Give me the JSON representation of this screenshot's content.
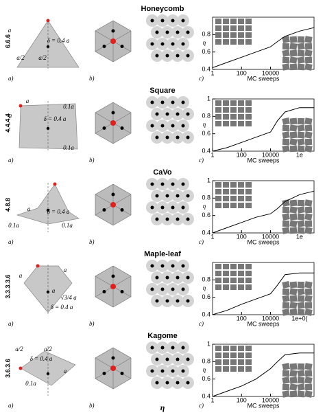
{
  "rows": [
    {
      "title": "Honeycomb",
      "tiling": "6.6.6",
      "annotations": [
        "a",
        "a/2",
        "a/2",
        "δ = 0.4 a"
      ],
      "panels": [
        "a)",
        "b)",
        "c)"
      ]
    },
    {
      "title": "Square",
      "tiling": "4.4.4.4",
      "annotations": [
        "a",
        "a",
        "δ = 0.4 a",
        "0.1a",
        "0.1a"
      ],
      "panels": [
        "a)",
        "b)",
        "c)"
      ]
    },
    {
      "title": "CaVo",
      "tiling": "4.8.8",
      "annotations": [
        "a",
        "δ = 0.4 a",
        "0.1a",
        "0.1a"
      ],
      "panels": [
        "a)",
        "b)",
        "c)"
      ]
    },
    {
      "title": "Maple-leaf",
      "tiling": "3.3.3.3.6",
      "annotations": [
        "a",
        "a",
        "a",
        "√3/4 a",
        "δ = 0.4 a"
      ],
      "panels": [
        "a)",
        "b)",
        "c)"
      ]
    },
    {
      "title": "Kagome",
      "tiling": "3.6.3.6",
      "annotations": [
        "a/2",
        "a/2",
        "δ = 0.4 a",
        "0.1a",
        "a"
      ],
      "panels": [
        "a)",
        "b)",
        "c)"
      ]
    }
  ],
  "chart_data": [
    {
      "type": "line",
      "xlabel": "MC sweeps",
      "ylabel": "η",
      "log_x": true,
      "color": "#000000",
      "xlim": [
        1,
        10000000
      ],
      "ylim": [
        0.4,
        1.0
      ],
      "xticks": [
        1,
        100,
        10000
      ],
      "yticks": [
        0.4,
        0.6,
        0.8
      ],
      "x": [
        1,
        10,
        100,
        1000,
        10000,
        30000,
        100000,
        1000000,
        10000000
      ],
      "values": [
        0.42,
        0.48,
        0.54,
        0.6,
        0.66,
        0.72,
        0.78,
        0.84,
        0.88
      ]
    },
    {
      "type": "line",
      "xlabel": "MC sweeps",
      "ylabel": "η",
      "log_x": true,
      "color": "#000000",
      "xlim": [
        1,
        10000000
      ],
      "ylim": [
        0.4,
        1.0
      ],
      "xticks": [
        1,
        100,
        10000,
        {
          "value": 1000000,
          "label": "1e"
        }
      ],
      "yticks": [
        0.4,
        0.6,
        0.8,
        1
      ],
      "x": [
        1,
        10,
        100,
        1000,
        10000,
        30000,
        100000,
        1000000,
        10000000
      ],
      "values": [
        0.4,
        0.44,
        0.5,
        0.56,
        0.62,
        0.75,
        0.85,
        0.9,
        0.9
      ]
    },
    {
      "type": "line",
      "xlabel": "MC sweeps",
      "ylabel": "η",
      "log_x": true,
      "color": "#000000",
      "xlim": [
        1,
        10000000
      ],
      "ylim": [
        0.4,
        1.0
      ],
      "xticks": [
        1,
        100,
        10000,
        {
          "value": 1000000,
          "label": "1e"
        }
      ],
      "yticks": [
        0.4,
        0.6,
        0.8,
        1
      ],
      "x": [
        1,
        10,
        100,
        1000,
        10000,
        30000,
        100000,
        1000000,
        10000000
      ],
      "values": [
        0.4,
        0.46,
        0.52,
        0.58,
        0.62,
        0.68,
        0.76,
        0.84,
        0.88
      ]
    },
    {
      "type": "line",
      "xlabel": "MC sweeps",
      "ylabel": "η",
      "log_x": true,
      "color": "#000000",
      "xlim": [
        1,
        10000000
      ],
      "ylim": [
        0.4,
        1.0
      ],
      "xticks": [
        100,
        10000,
        {
          "value": 1000000,
          "label": "1e+0("
        }
      ],
      "yticks": [
        0.4,
        0.6,
        0.8
      ],
      "x": [
        1,
        10,
        100,
        1000,
        10000,
        30000,
        100000,
        1000000,
        10000000
      ],
      "values": [
        0.4,
        0.45,
        0.52,
        0.58,
        0.64,
        0.74,
        0.86,
        0.88,
        0.88
      ]
    },
    {
      "type": "line",
      "xlabel": "MC sweeps",
      "ylabel": "η",
      "log_x": true,
      "color": "#000000",
      "xlim": [
        1,
        10000000
      ],
      "ylim": [
        0.4,
        1.0
      ],
      "xticks": [
        1,
        100,
        10000
      ],
      "yticks": [
        0.4,
        0.6,
        0.8,
        1
      ],
      "x": [
        1,
        10,
        100,
        1000,
        10000,
        30000,
        100000,
        1000000,
        10000000
      ],
      "values": [
        0.4,
        0.46,
        0.52,
        0.6,
        0.72,
        0.8,
        0.88,
        0.9,
        0.9
      ]
    }
  ],
  "footer": "η"
}
